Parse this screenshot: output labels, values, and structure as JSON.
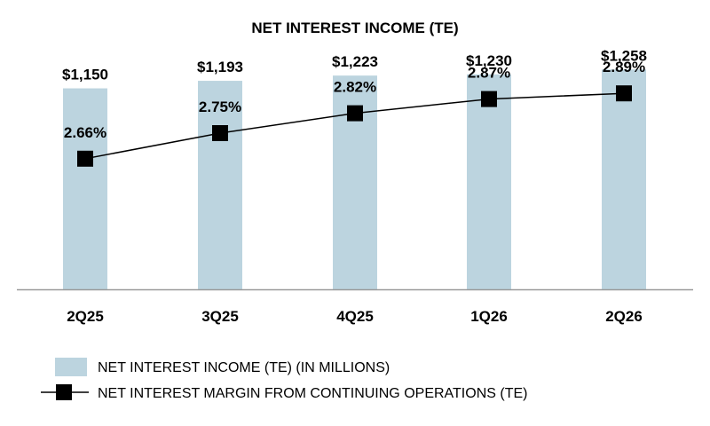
{
  "chart_data": {
    "type": "bar",
    "title": "NET INTEREST INCOME (TE)",
    "categories": [
      "2Q25",
      "3Q25",
      "4Q25",
      "1Q26",
      "2Q26"
    ],
    "series": [
      {
        "name": "NET INTEREST INCOME (TE) (IN MILLIONS)",
        "type": "bar",
        "values": [
          1150,
          1193,
          1223,
          1230,
          1258
        ],
        "labels": [
          "$1,150",
          "$1,193",
          "$1,223",
          "$1,230",
          "$1,258"
        ],
        "color": "#bcd4df"
      },
      {
        "name": "NET INTEREST MARGIN FROM CONTINUING OPERATIONS (TE)",
        "type": "line",
        "values": [
          2.66,
          2.75,
          2.82,
          2.87,
          2.89
        ],
        "labels": [
          "2.66%",
          "2.75%",
          "2.82%",
          "2.87%",
          "2.89%"
        ],
        "color": "#000000",
        "marker": "square"
      }
    ],
    "bar_axis_range": [
      0,
      1300
    ],
    "line_axis_range": [
      2.2,
      3.0
    ],
    "grid": false,
    "legend_position": "bottom-left",
    "colors": {
      "axis": "#999999",
      "bar": "#bcd4df",
      "line": "#000000"
    }
  }
}
